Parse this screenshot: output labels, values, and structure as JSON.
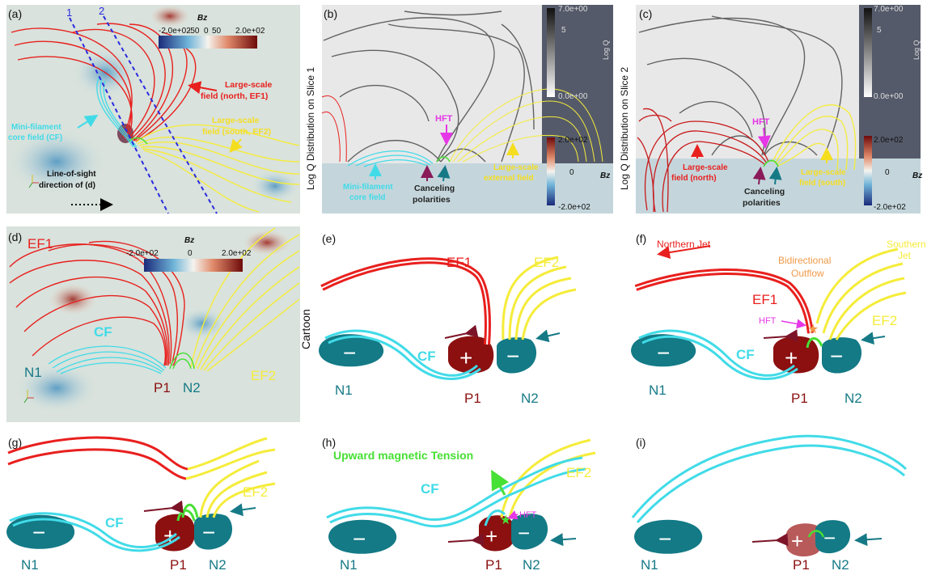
{
  "panels": {
    "a": {
      "label": "(a)",
      "slice1": "1",
      "slice2": "2",
      "cbar_title": "Bz",
      "cbar_ticks": [
        "-2.0e+02",
        "-50",
        "0",
        "50",
        "2.0e+02"
      ],
      "label_ef1": [
        "Large-scale",
        "field (north, EF1)"
      ],
      "label_ef2": [
        "Large-scale",
        "field (south, EF2)"
      ],
      "label_cf": [
        "Mini-filament",
        "core field (CF)"
      ],
      "label_los": [
        "Line-of-sight",
        "direction of (d)"
      ]
    },
    "b": {
      "label": "(b)",
      "side_title": "Log Q Distribution on Slice 1",
      "q_max": "7.0e+00",
      "q_mid": "5",
      "q_min": "0.0e+00",
      "q_title": "Log Q",
      "bz_max": "2.0e+02",
      "bz_mid": "0",
      "bz_min": "-2.0e+02",
      "bz_title": "Bz",
      "hft": "HFT",
      "label_cf": [
        "Mini-filament",
        "core field"
      ],
      "label_cancel": [
        "Canceling",
        "polarities"
      ],
      "label_ext": [
        "Large-scale",
        "external field"
      ]
    },
    "c": {
      "label": "(c)",
      "side_title": "Log Q Distribution on Slice 2",
      "q_max": "7.0e+00",
      "q_mid": "5",
      "q_min": "0.0e+00",
      "q_title": "Log Q",
      "bz_max": "2.0e+02",
      "bz_mid": "0",
      "bz_min": "-2.0e+02",
      "bz_title": "Bz",
      "hft": "HFT",
      "label_north": [
        "Large-scale",
        "field (north)"
      ],
      "label_cancel": [
        "Canceling",
        "polarities"
      ],
      "label_south": [
        "Large-scale",
        "field (south)"
      ]
    },
    "d": {
      "label": "(d)",
      "cbar_title": "Bz",
      "cbar_ticks": [
        "-2.0e+02",
        "0",
        "2.0e+02"
      ],
      "ef1": "EF1",
      "ef2": "EF2",
      "cf": "CF",
      "n1": "N1",
      "p1": "P1",
      "n2": "N2"
    },
    "e": {
      "label": "(e)",
      "side": "Cartoon",
      "ef1": "EF1",
      "ef2": "EF2",
      "cf": "CF",
      "n1": "N1",
      "p1": "P1",
      "n2": "N2"
    },
    "f": {
      "label": "(f)",
      "northern_jet": "Northern Jet",
      "southern_jet": [
        "Southern",
        "Jet"
      ],
      "bidir": [
        "Bidirectional",
        "Outflow"
      ],
      "hft": "HFT",
      "ef1": "EF1",
      "ef2": "EF2",
      "cf": "CF",
      "n1": "N1",
      "p1": "P1",
      "n2": "N2"
    },
    "g": {
      "label": "(g)",
      "ef2": "EF2",
      "cf": "CF",
      "n1": "N1",
      "p1": "P1",
      "n2": "N2"
    },
    "h": {
      "label": "(h)",
      "tension": "Upward magnetic Tension",
      "hft": "HFT",
      "ef2": "EF2",
      "cf": "CF",
      "n1": "N1",
      "p1": "P1",
      "n2": "N2"
    },
    "i": {
      "label": "(i)",
      "n1": "N1",
      "p1": "P1",
      "n2": "N2"
    }
  },
  "colors": {
    "ef1": "#e8201e",
    "ef2": "#f5ec3a",
    "cf": "#41dbe8",
    "hft": "#e637e6",
    "neg": "#137a86",
    "pos": "#8c1010",
    "green": "#47e034",
    "orange": "#f19a4a",
    "dark_arrow": "#7c1428",
    "teal_arrow": "#167a86",
    "blue_dash": "#2b2be0"
  }
}
